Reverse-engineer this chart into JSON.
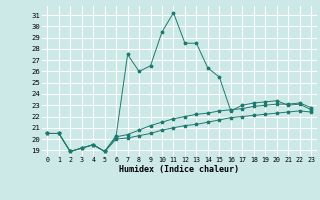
{
  "xlabel": "Humidex (Indice chaleur)",
  "background_color": "#cce9e7",
  "grid_color": "#b8dbd9",
  "line_color": "#1e7a6e",
  "xlim": [
    -0.5,
    23.5
  ],
  "ylim": [
    18.5,
    31.8
  ],
  "yticks": [
    19,
    20,
    21,
    22,
    23,
    24,
    25,
    26,
    27,
    28,
    29,
    30,
    31
  ],
  "xticks": [
    0,
    1,
    2,
    3,
    4,
    5,
    6,
    7,
    8,
    9,
    10,
    11,
    12,
    13,
    14,
    15,
    16,
    17,
    18,
    19,
    20,
    21,
    22,
    23
  ],
  "curve1_y": [
    20.5,
    20.5,
    18.9,
    19.2,
    19.5,
    18.9,
    20.3,
    27.5,
    26.0,
    26.5,
    29.5,
    31.2,
    28.5,
    28.5,
    26.3,
    25.5,
    22.5,
    23.0,
    23.2,
    23.3,
    23.4,
    23.0,
    23.1,
    22.6
  ],
  "curve2_y": [
    20.5,
    20.5,
    18.9,
    19.2,
    19.5,
    18.9,
    20.2,
    20.4,
    20.8,
    21.2,
    21.5,
    21.8,
    22.0,
    22.2,
    22.3,
    22.5,
    22.6,
    22.7,
    22.9,
    23.0,
    23.1,
    23.1,
    23.2,
    22.8
  ],
  "curve3_y": [
    20.5,
    20.5,
    18.9,
    19.2,
    19.5,
    18.9,
    20.0,
    20.1,
    20.3,
    20.5,
    20.8,
    21.0,
    21.2,
    21.3,
    21.5,
    21.7,
    21.9,
    22.0,
    22.1,
    22.2,
    22.3,
    22.4,
    22.5,
    22.4
  ]
}
